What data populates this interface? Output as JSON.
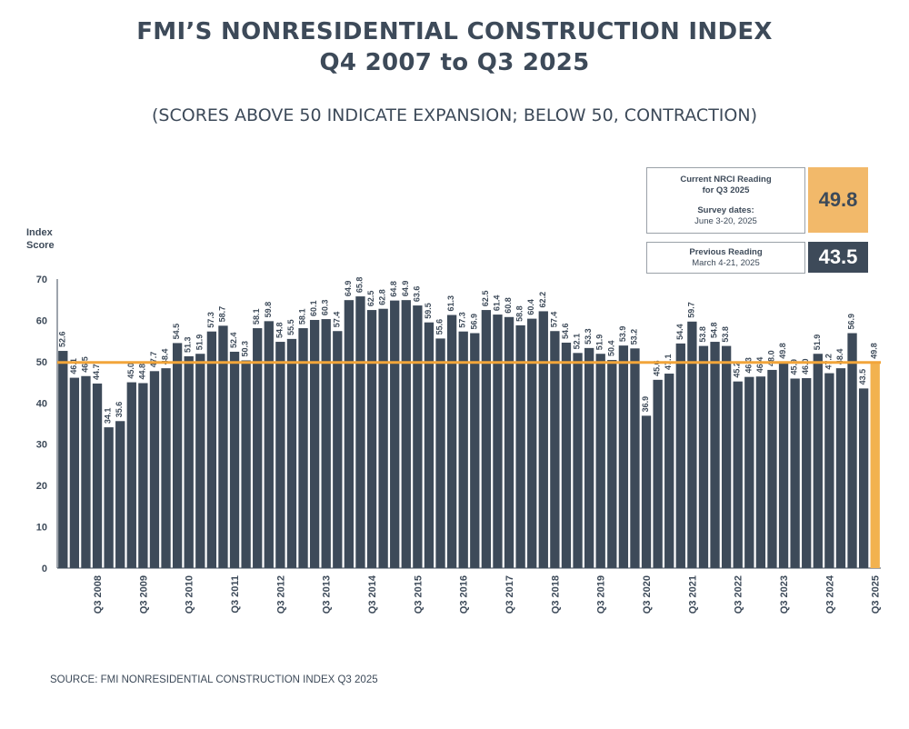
{
  "header": {
    "title_line1": "FMI’S NONRESIDENTIAL CONSTRUCTION INDEX",
    "title_line2": "Q4 2007 to Q3 2025",
    "subtitle": "(SCORES ABOVE 50 INDICATE EXPANSION; BELOW 50, CONTRACTION)"
  },
  "current_box": {
    "line1": "Current NRCI Reading",
    "line2": "for Q3 2025",
    "line3": "Survey dates:",
    "line4": "June 3-20, 2025",
    "value": "49.8"
  },
  "previous_box": {
    "line1": "Previous Reading",
    "line2": "March 4-21, 2025",
    "value": "43.5"
  },
  "source": "SOURCE: FMI NONRESIDENTIAL CONSTRUCTION INDEX Q3 2025",
  "colors": {
    "bar": "#3d4a59",
    "highlight": "#f2b24f",
    "threshold_line": "#f2a53a",
    "text": "#3d4a59"
  },
  "chart_data": {
    "type": "bar",
    "ylabel": "Index Score",
    "ylim": [
      0,
      70
    ],
    "yticks": [
      0,
      10,
      20,
      30,
      40,
      50,
      60,
      70
    ],
    "grid": false,
    "threshold": 49.8,
    "x_tick_labels": [
      {
        "index": 3,
        "label": "Q3 2008"
      },
      {
        "index": 7,
        "label": "Q3 2009"
      },
      {
        "index": 11,
        "label": "Q3 2010"
      },
      {
        "index": 15,
        "label": "Q3 2011"
      },
      {
        "index": 19,
        "label": "Q3 2012"
      },
      {
        "index": 23,
        "label": "Q3 2013"
      },
      {
        "index": 27,
        "label": "Q3 2014"
      },
      {
        "index": 31,
        "label": "Q3 2015"
      },
      {
        "index": 35,
        "label": "Q3 2016"
      },
      {
        "index": 39,
        "label": "Q3 2017"
      },
      {
        "index": 43,
        "label": "Q3 2018"
      },
      {
        "index": 47,
        "label": "Q3 2019"
      },
      {
        "index": 51,
        "label": "Q3 2020"
      },
      {
        "index": 55,
        "label": "Q3 2021"
      },
      {
        "index": 59,
        "label": "Q3 2022"
      },
      {
        "index": 63,
        "label": "Q3 2023"
      },
      {
        "index": 67,
        "label": "Q3 2024"
      },
      {
        "index": 71,
        "label": "Q3 2025"
      }
    ],
    "values": [
      52.6,
      46.1,
      46.5,
      44.7,
      34.1,
      35.6,
      45.0,
      44.8,
      47.7,
      48.4,
      54.5,
      51.3,
      51.9,
      57.3,
      58.7,
      52.4,
      50.3,
      58.1,
      59.8,
      54.8,
      55.5,
      58.1,
      60.1,
      60.3,
      57.4,
      64.9,
      65.8,
      62.5,
      62.8,
      64.8,
      64.9,
      63.6,
      59.5,
      55.6,
      61.3,
      57.3,
      56.9,
      62.5,
      61.4,
      60.8,
      58.8,
      60.4,
      62.2,
      57.4,
      54.6,
      52.1,
      53.3,
      51.9,
      50.4,
      53.9,
      53.2,
      36.9,
      45.6,
      47.1,
      54.4,
      59.7,
      53.8,
      54.8,
      53.8,
      45.2,
      46.3,
      46.4,
      48.0,
      49.8,
      45.9,
      46.0,
      51.9,
      47.2,
      48.4,
      56.9,
      43.5,
      49.8
    ],
    "highlight_index": 71
  }
}
